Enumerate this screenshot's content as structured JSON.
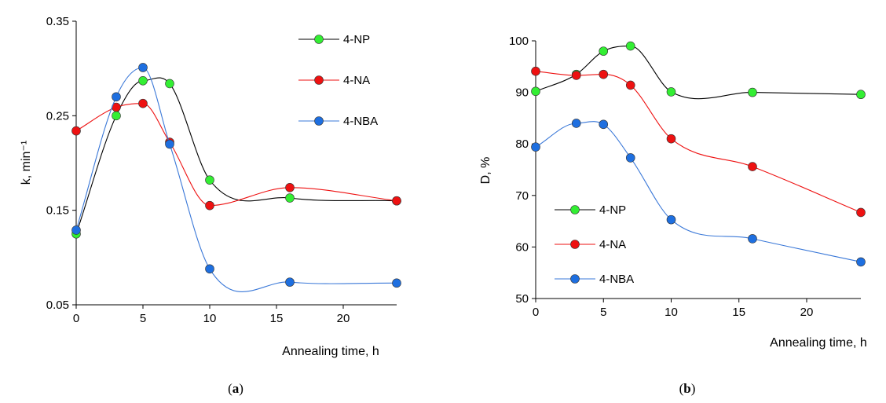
{
  "chart_data": [
    {
      "type": "line",
      "panel": "a",
      "caption_open": "(",
      "caption_letter": "a",
      "caption_close": ")",
      "xlabel": "Annealing time, h",
      "ylabel": "k, min⁻¹",
      "xlim": [
        0,
        24
      ],
      "ylim": [
        0.05,
        0.35
      ],
      "xticks": [
        "0",
        "5",
        "10",
        "15",
        "20"
      ],
      "xtick_values": [
        0,
        5,
        10,
        15,
        20
      ],
      "yticks": [
        "0.05",
        "0.15",
        "0.25",
        "0.35"
      ],
      "ytick_values": [
        0.05,
        0.15,
        0.25,
        0.35
      ],
      "legend_position": "top-right",
      "x": [
        0,
        3,
        5,
        7,
        10,
        16,
        24
      ],
      "series": [
        {
          "name": "4-NP",
          "color": "#33ee33",
          "line_color": "#000000",
          "values": [
            0.125,
            0.25,
            0.287,
            0.284,
            0.182,
            0.163,
            0.16
          ]
        },
        {
          "name": "4-NA",
          "color": "#ee1111",
          "line_color": "#ee1111",
          "values": [
            0.234,
            0.259,
            0.263,
            0.222,
            0.155,
            0.174,
            0.16
          ]
        },
        {
          "name": "4-NBA",
          "color": "#1e6fe0",
          "line_color": "#3a78d8",
          "values": [
            0.129,
            0.27,
            0.301,
            0.22,
            0.088,
            0.074,
            0.073
          ]
        }
      ]
    },
    {
      "type": "line",
      "panel": "b",
      "caption_open": "(",
      "caption_letter": "b",
      "caption_close": ")",
      "xlabel": "Annealing time, h",
      "ylabel": "D, %",
      "xlim": [
        0,
        24
      ],
      "ylim": [
        50,
        100
      ],
      "xticks": [
        "0",
        "5",
        "10",
        "15",
        "20"
      ],
      "xtick_values": [
        0,
        5,
        10,
        15,
        20
      ],
      "yticks": [
        "50",
        "60",
        "70",
        "80",
        "90",
        "100"
      ],
      "ytick_values": [
        50,
        60,
        70,
        80,
        90,
        100
      ],
      "legend_position": "bottom-left",
      "x": [
        0,
        3,
        5,
        7,
        10,
        16,
        24
      ],
      "series": [
        {
          "name": "4-NP",
          "color": "#33ee33",
          "line_color": "#000000",
          "values": [
            90.2,
            93.5,
            98.0,
            99.0,
            90.1,
            90.0,
            89.6
          ]
        },
        {
          "name": "4-NA",
          "color": "#ee1111",
          "line_color": "#ee1111",
          "values": [
            94.1,
            93.3,
            93.5,
            91.4,
            81.0,
            75.6,
            66.7
          ]
        },
        {
          "name": "4-NBA",
          "color": "#1e6fe0",
          "line_color": "#3a78d8",
          "values": [
            79.4,
            84.0,
            83.8,
            77.3,
            65.3,
            61.6,
            57.1
          ]
        }
      ]
    }
  ]
}
